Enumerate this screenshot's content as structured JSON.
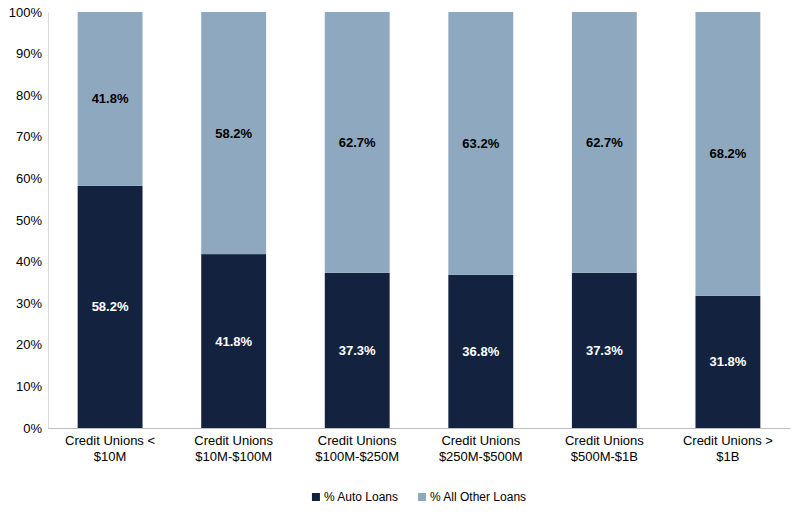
{
  "chart_data": {
    "type": "bar",
    "stacked": true,
    "data_labels": true,
    "legend": "bottom",
    "grid": false,
    "categories": [
      "Credit Unions <\n$10M",
      "Credit Unions\n$10M-$100M",
      "Credit Unions\n$100M-$250M",
      "Credit Unions\n$250M-$500M",
      "Credit Unions\n$500M-$1B",
      "Credit Unions >\n$1B"
    ],
    "series": [
      {
        "name": "% Auto Loans",
        "color": "#13233f",
        "values": [
          58.2,
          41.8,
          37.3,
          36.8,
          37.3,
          31.8
        ],
        "value_labels": [
          "58.2%",
          "41.8%",
          "37.3%",
          "36.8%",
          "37.3%",
          "31.8%"
        ]
      },
      {
        "name": "% All Other Loans",
        "color": "#8ea9bf",
        "values": [
          41.8,
          58.2,
          62.7,
          63.2,
          62.7,
          68.2
        ],
        "value_labels": [
          "41.8%",
          "58.2%",
          "62.7%",
          "63.2%",
          "62.7%",
          "68.2%"
        ]
      }
    ],
    "ylim": [
      0,
      100
    ],
    "yticks": [
      {
        "value": 0,
        "label": "0%"
      },
      {
        "value": 10,
        "label": "10%"
      },
      {
        "value": 20,
        "label": "20%"
      },
      {
        "value": 30,
        "label": "30%"
      },
      {
        "value": 40,
        "label": "40%"
      },
      {
        "value": 50,
        "label": "50%"
      },
      {
        "value": 60,
        "label": "60%"
      },
      {
        "value": 70,
        "label": "70%"
      },
      {
        "value": 80,
        "label": "80%"
      },
      {
        "value": 90,
        "label": "90%"
      },
      {
        "value": 100,
        "label": "100%"
      }
    ]
  }
}
